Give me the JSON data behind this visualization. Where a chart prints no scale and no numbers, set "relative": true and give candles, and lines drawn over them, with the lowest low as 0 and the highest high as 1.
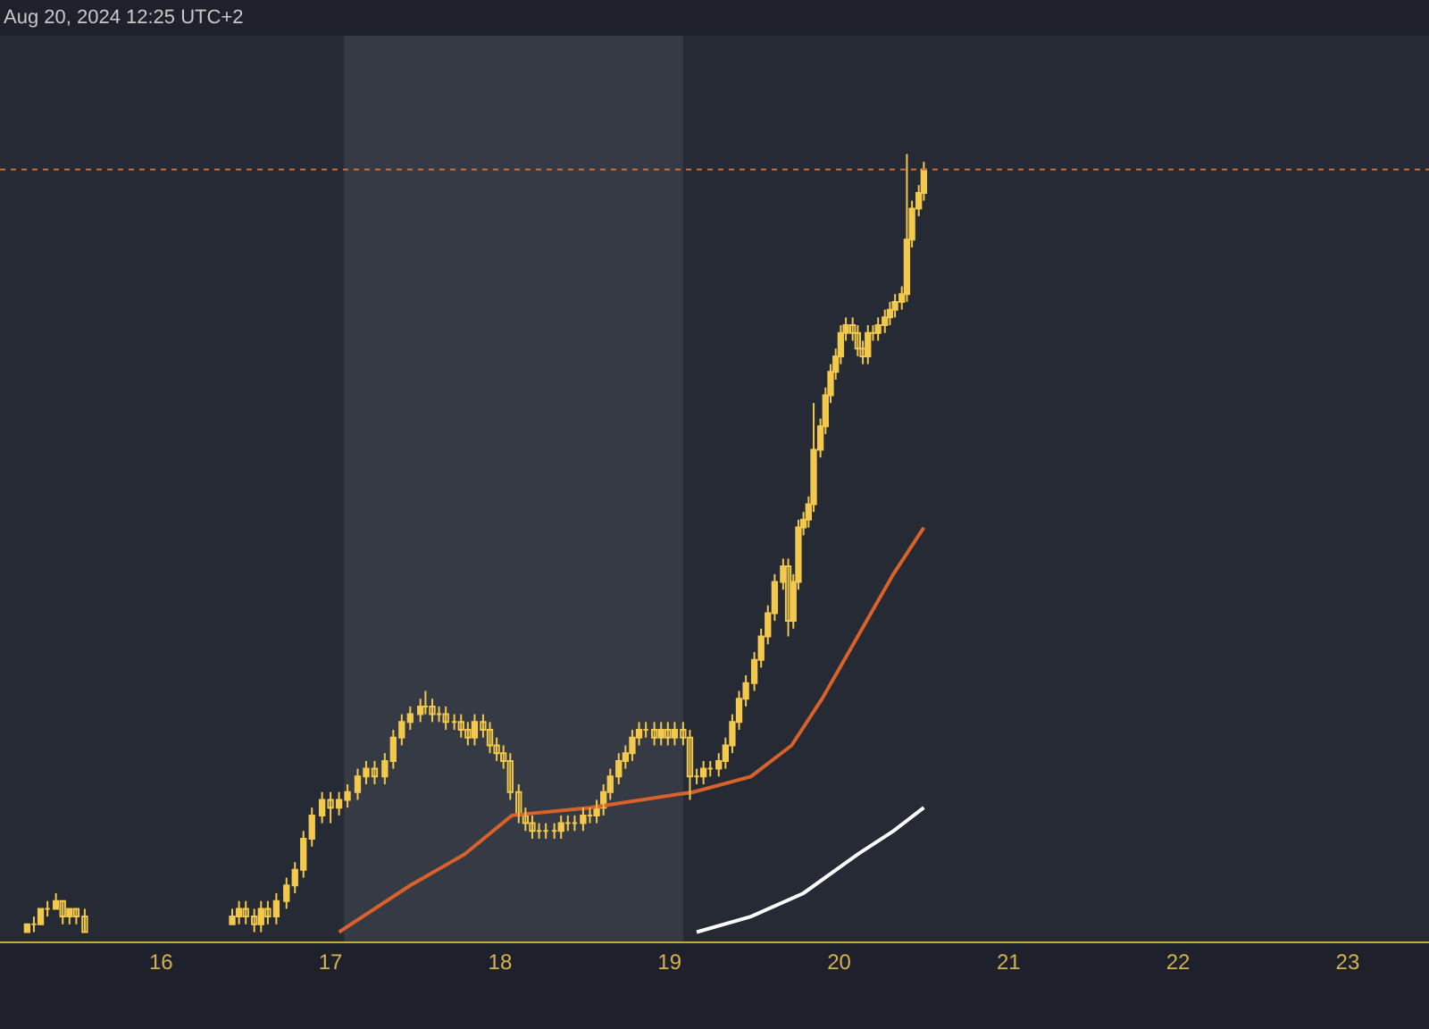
{
  "chart_data": {
    "type": "candlestick",
    "relative": true,
    "color": "#f2c94c",
    "tick_labels": "x",
    "grid": false,
    "annotations": [
      "Aug 20, 2024 12:25 UTC+2"
    ],
    "xlim": [
      15.05,
      23.48
    ],
    "xticks": [
      16,
      17,
      18,
      19,
      20,
      21,
      22,
      23
    ],
    "x": [
      15.21,
      15.25,
      15.29,
      15.33,
      15.38,
      15.42,
      15.46,
      15.5,
      15.55,
      16.42,
      16.46,
      16.5,
      16.55,
      16.59,
      16.63,
      16.68,
      16.74,
      16.79,
      16.84,
      16.89,
      16.95,
      17.0,
      17.05,
      17.1,
      17.16,
      17.21,
      17.26,
      17.32,
      17.37,
      17.42,
      17.47,
      17.53,
      17.56,
      17.6,
      17.64,
      17.68,
      17.73,
      17.77,
      17.81,
      17.85,
      17.9,
      17.94,
      17.98,
      18.02,
      18.06,
      18.11,
      18.15,
      18.19,
      18.23,
      18.27,
      18.32,
      18.36,
      18.4,
      18.44,
      18.49,
      18.53,
      18.57,
      18.61,
      18.65,
      18.7,
      18.74,
      18.78,
      18.82,
      18.86,
      18.91,
      18.95,
      18.99,
      19.03,
      19.08,
      19.12,
      19.16,
      19.2,
      19.24,
      19.29,
      19.33,
      19.37,
      19.41,
      19.45,
      19.5,
      19.54,
      19.58,
      19.62,
      19.67,
      19.7,
      19.73,
      19.76,
      19.79,
      19.82,
      19.85,
      19.89,
      19.92,
      19.95,
      19.98,
      20.01,
      20.04,
      20.08,
      20.11,
      20.14,
      20.17,
      20.2,
      20.23,
      20.27,
      20.3,
      20.33,
      20.37,
      20.4,
      20.43,
      20.47,
      20.5
    ],
    "ohlc": [
      [
        0,
        0.01,
        0,
        0.01
      ],
      [
        0.01,
        0.02,
        0,
        0.01
      ],
      [
        0.01,
        0.03,
        0.01,
        0.03
      ],
      [
        0.03,
        0.04,
        0.02,
        0.03
      ],
      [
        0.03,
        0.05,
        0.03,
        0.04
      ],
      [
        0.04,
        0.04,
        0.01,
        0.02
      ],
      [
        0.02,
        0.03,
        0.01,
        0.03
      ],
      [
        0.03,
        0.03,
        0.01,
        0.02
      ],
      [
        0.02,
        0.03,
        0,
        0
      ],
      [
        0.01,
        0.03,
        0.01,
        0.02
      ],
      [
        0.02,
        0.04,
        0.01,
        0.03
      ],
      [
        0.03,
        0.04,
        0.01,
        0.02
      ],
      [
        0.02,
        0.03,
        0,
        0.01
      ],
      [
        0.01,
        0.04,
        0,
        0.03
      ],
      [
        0.03,
        0.04,
        0.01,
        0.02
      ],
      [
        0.02,
        0.05,
        0.01,
        0.04
      ],
      [
        0.04,
        0.07,
        0.03,
        0.06
      ],
      [
        0.06,
        0.09,
        0.05,
        0.08
      ],
      [
        0.08,
        0.13,
        0.07,
        0.12
      ],
      [
        0.12,
        0.16,
        0.11,
        0.15
      ],
      [
        0.15,
        0.18,
        0.14,
        0.17
      ],
      [
        0.17,
        0.18,
        0.14,
        0.16
      ],
      [
        0.16,
        0.18,
        0.15,
        0.17
      ],
      [
        0.17,
        0.19,
        0.16,
        0.18
      ],
      [
        0.18,
        0.21,
        0.17,
        0.2
      ],
      [
        0.2,
        0.22,
        0.19,
        0.21
      ],
      [
        0.21,
        0.22,
        0.19,
        0.2
      ],
      [
        0.2,
        0.23,
        0.19,
        0.22
      ],
      [
        0.22,
        0.26,
        0.21,
        0.25
      ],
      [
        0.25,
        0.28,
        0.24,
        0.27
      ],
      [
        0.27,
        0.29,
        0.26,
        0.28
      ],
      [
        0.28,
        0.3,
        0.27,
        0.29
      ],
      [
        0.29,
        0.31,
        0.28,
        0.29
      ],
      [
        0.29,
        0.3,
        0.27,
        0.28
      ],
      [
        0.28,
        0.29,
        0.27,
        0.28
      ],
      [
        0.28,
        0.29,
        0.26,
        0.27
      ],
      [
        0.27,
        0.28,
        0.26,
        0.27
      ],
      [
        0.27,
        0.28,
        0.25,
        0.26
      ],
      [
        0.26,
        0.27,
        0.24,
        0.25
      ],
      [
        0.25,
        0.28,
        0.24,
        0.27
      ],
      [
        0.27,
        0.28,
        0.25,
        0.26
      ],
      [
        0.26,
        0.27,
        0.23,
        0.24
      ],
      [
        0.24,
        0.25,
        0.22,
        0.23
      ],
      [
        0.23,
        0.24,
        0.21,
        0.22
      ],
      [
        0.22,
        0.23,
        0.17,
        0.18
      ],
      [
        0.18,
        0.19,
        0.14,
        0.15
      ],
      [
        0.15,
        0.16,
        0.13,
        0.14
      ],
      [
        0.14,
        0.15,
        0.12,
        0.13
      ],
      [
        0.13,
        0.14,
        0.12,
        0.13
      ],
      [
        0.13,
        0.14,
        0.12,
        0.13
      ],
      [
        0.13,
        0.14,
        0.12,
        0.13
      ],
      [
        0.13,
        0.15,
        0.12,
        0.14
      ],
      [
        0.14,
        0.15,
        0.13,
        0.14
      ],
      [
        0.14,
        0.15,
        0.13,
        0.14
      ],
      [
        0.14,
        0.16,
        0.13,
        0.15
      ],
      [
        0.15,
        0.16,
        0.14,
        0.15
      ],
      [
        0.15,
        0.17,
        0.14,
        0.16
      ],
      [
        0.16,
        0.19,
        0.15,
        0.18
      ],
      [
        0.18,
        0.21,
        0.17,
        0.2
      ],
      [
        0.2,
        0.23,
        0.19,
        0.22
      ],
      [
        0.22,
        0.24,
        0.21,
        0.23
      ],
      [
        0.23,
        0.26,
        0.22,
        0.25
      ],
      [
        0.25,
        0.27,
        0.24,
        0.26
      ],
      [
        0.26,
        0.27,
        0.25,
        0.26
      ],
      [
        0.26,
        0.27,
        0.24,
        0.25
      ],
      [
        0.25,
        0.27,
        0.24,
        0.26
      ],
      [
        0.26,
        0.27,
        0.24,
        0.25
      ],
      [
        0.25,
        0.27,
        0.24,
        0.26
      ],
      [
        0.26,
        0.27,
        0.24,
        0.25
      ],
      [
        0.25,
        0.26,
        0.17,
        0.2
      ],
      [
        0.2,
        0.21,
        0.19,
        0.2
      ],
      [
        0.2,
        0.22,
        0.19,
        0.21
      ],
      [
        0.21,
        0.22,
        0.2,
        0.21
      ],
      [
        0.21,
        0.23,
        0.2,
        0.22
      ],
      [
        0.22,
        0.25,
        0.21,
        0.24
      ],
      [
        0.24,
        0.28,
        0.23,
        0.27
      ],
      [
        0.27,
        0.31,
        0.26,
        0.3
      ],
      [
        0.3,
        0.33,
        0.29,
        0.32
      ],
      [
        0.32,
        0.36,
        0.31,
        0.35
      ],
      [
        0.35,
        0.39,
        0.34,
        0.38
      ],
      [
        0.38,
        0.42,
        0.37,
        0.41
      ],
      [
        0.41,
        0.46,
        0.4,
        0.45
      ],
      [
        0.45,
        0.48,
        0.44,
        0.47
      ],
      [
        0.47,
        0.48,
        0.38,
        0.4
      ],
      [
        0.4,
        0.46,
        0.39,
        0.45
      ],
      [
        0.45,
        0.53,
        0.44,
        0.52
      ],
      [
        0.52,
        0.54,
        0.51,
        0.53
      ],
      [
        0.53,
        0.56,
        0.52,
        0.55
      ],
      [
        0.55,
        0.68,
        0.54,
        0.62
      ],
      [
        0.62,
        0.66,
        0.61,
        0.65
      ],
      [
        0.65,
        0.7,
        0.64,
        0.69
      ],
      [
        0.69,
        0.73,
        0.68,
        0.72
      ],
      [
        0.72,
        0.75,
        0.71,
        0.74
      ],
      [
        0.74,
        0.78,
        0.73,
        0.77
      ],
      [
        0.77,
        0.79,
        0.76,
        0.78
      ],
      [
        0.78,
        0.79,
        0.76,
        0.77
      ],
      [
        0.77,
        0.78,
        0.74,
        0.75
      ],
      [
        0.75,
        0.76,
        0.73,
        0.74
      ],
      [
        0.74,
        0.78,
        0.73,
        0.77
      ],
      [
        0.77,
        0.78,
        0.76,
        0.77
      ],
      [
        0.77,
        0.79,
        0.76,
        0.78
      ],
      [
        0.78,
        0.8,
        0.77,
        0.79
      ],
      [
        0.79,
        0.81,
        0.78,
        0.8
      ],
      [
        0.8,
        0.82,
        0.79,
        0.81
      ],
      [
        0.81,
        0.83,
        0.8,
        0.82
      ],
      [
        0.82,
        1.0,
        0.81,
        0.89
      ],
      [
        0.89,
        0.94,
        0.88,
        0.93
      ],
      [
        0.93,
        0.96,
        0.92,
        0.95
      ],
      [
        0.95,
        0.99,
        0.94,
        0.98
      ]
    ],
    "series": [
      {
        "type": "line",
        "color": "#d9622b",
        "x": [
          17.05,
          17.47,
          17.79,
          18.07,
          18.53,
          19.14,
          19.48,
          19.72,
          19.9,
          20.11,
          20.32,
          20.5
        ],
        "values": [
          0,
          0.06,
          0.1,
          0.15,
          0.16,
          0.18,
          0.2,
          0.24,
          0.3,
          0.38,
          0.46,
          0.52
        ]
      },
      {
        "type": "line",
        "color": "#ffffff",
        "x": [
          19.16,
          19.48,
          19.79,
          20.11,
          20.32,
          20.5
        ],
        "values": [
          0,
          0.02,
          0.05,
          0.1,
          0.13,
          0.16
        ]
      }
    ],
    "bands": [
      {
        "axis": "x",
        "from": 17.08,
        "to": 19.08,
        "color": "#363a45"
      }
    ],
    "ref_lines": [
      {
        "axis": "y",
        "value": 0.98,
        "color": "#c9703a",
        "line_style": "dotted"
      }
    ]
  }
}
